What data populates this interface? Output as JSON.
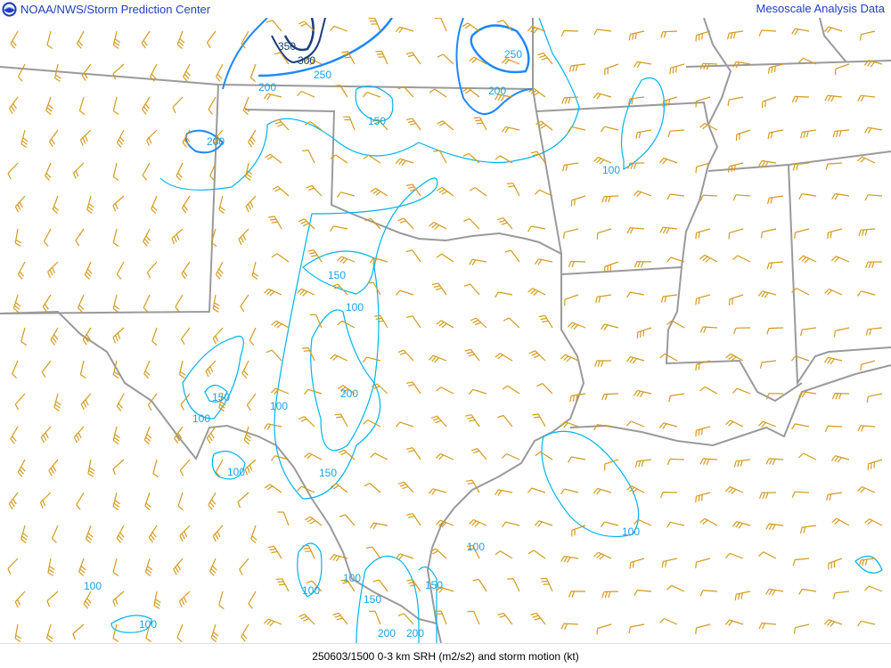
{
  "header": {
    "logo": "NOAA",
    "title": "NOAA/NWS/Storm Prediction Center",
    "right_title": "Mesoscale Analysis Data"
  },
  "footer": {
    "caption": "250603/1500 0-3 km SRH (m2/s2) and storm motion (kt)"
  },
  "map": {
    "field": "0-3 km SRH (m2/s2)",
    "barbs": "storm motion (kt)",
    "contour_levels": [
      100,
      150,
      200,
      250,
      300,
      350
    ],
    "colors": {
      "contour_low": "#00b4f0",
      "contour_mid": "#1e88ff",
      "contour_high": "#1a3d7a",
      "barb": "#d39a1c",
      "border": "#9a9a9a",
      "header_text": "#1f3fbf"
    },
    "contour_labels": [
      "350",
      "300",
      "250",
      "200",
      "150",
      "250",
      "200",
      "200",
      "100",
      "150",
      "100",
      "200",
      "150",
      "100",
      "100",
      "100",
      "150",
      "100",
      "100",
      "100",
      "100",
      "100",
      "150",
      "150",
      "100",
      "200",
      "200"
    ]
  }
}
